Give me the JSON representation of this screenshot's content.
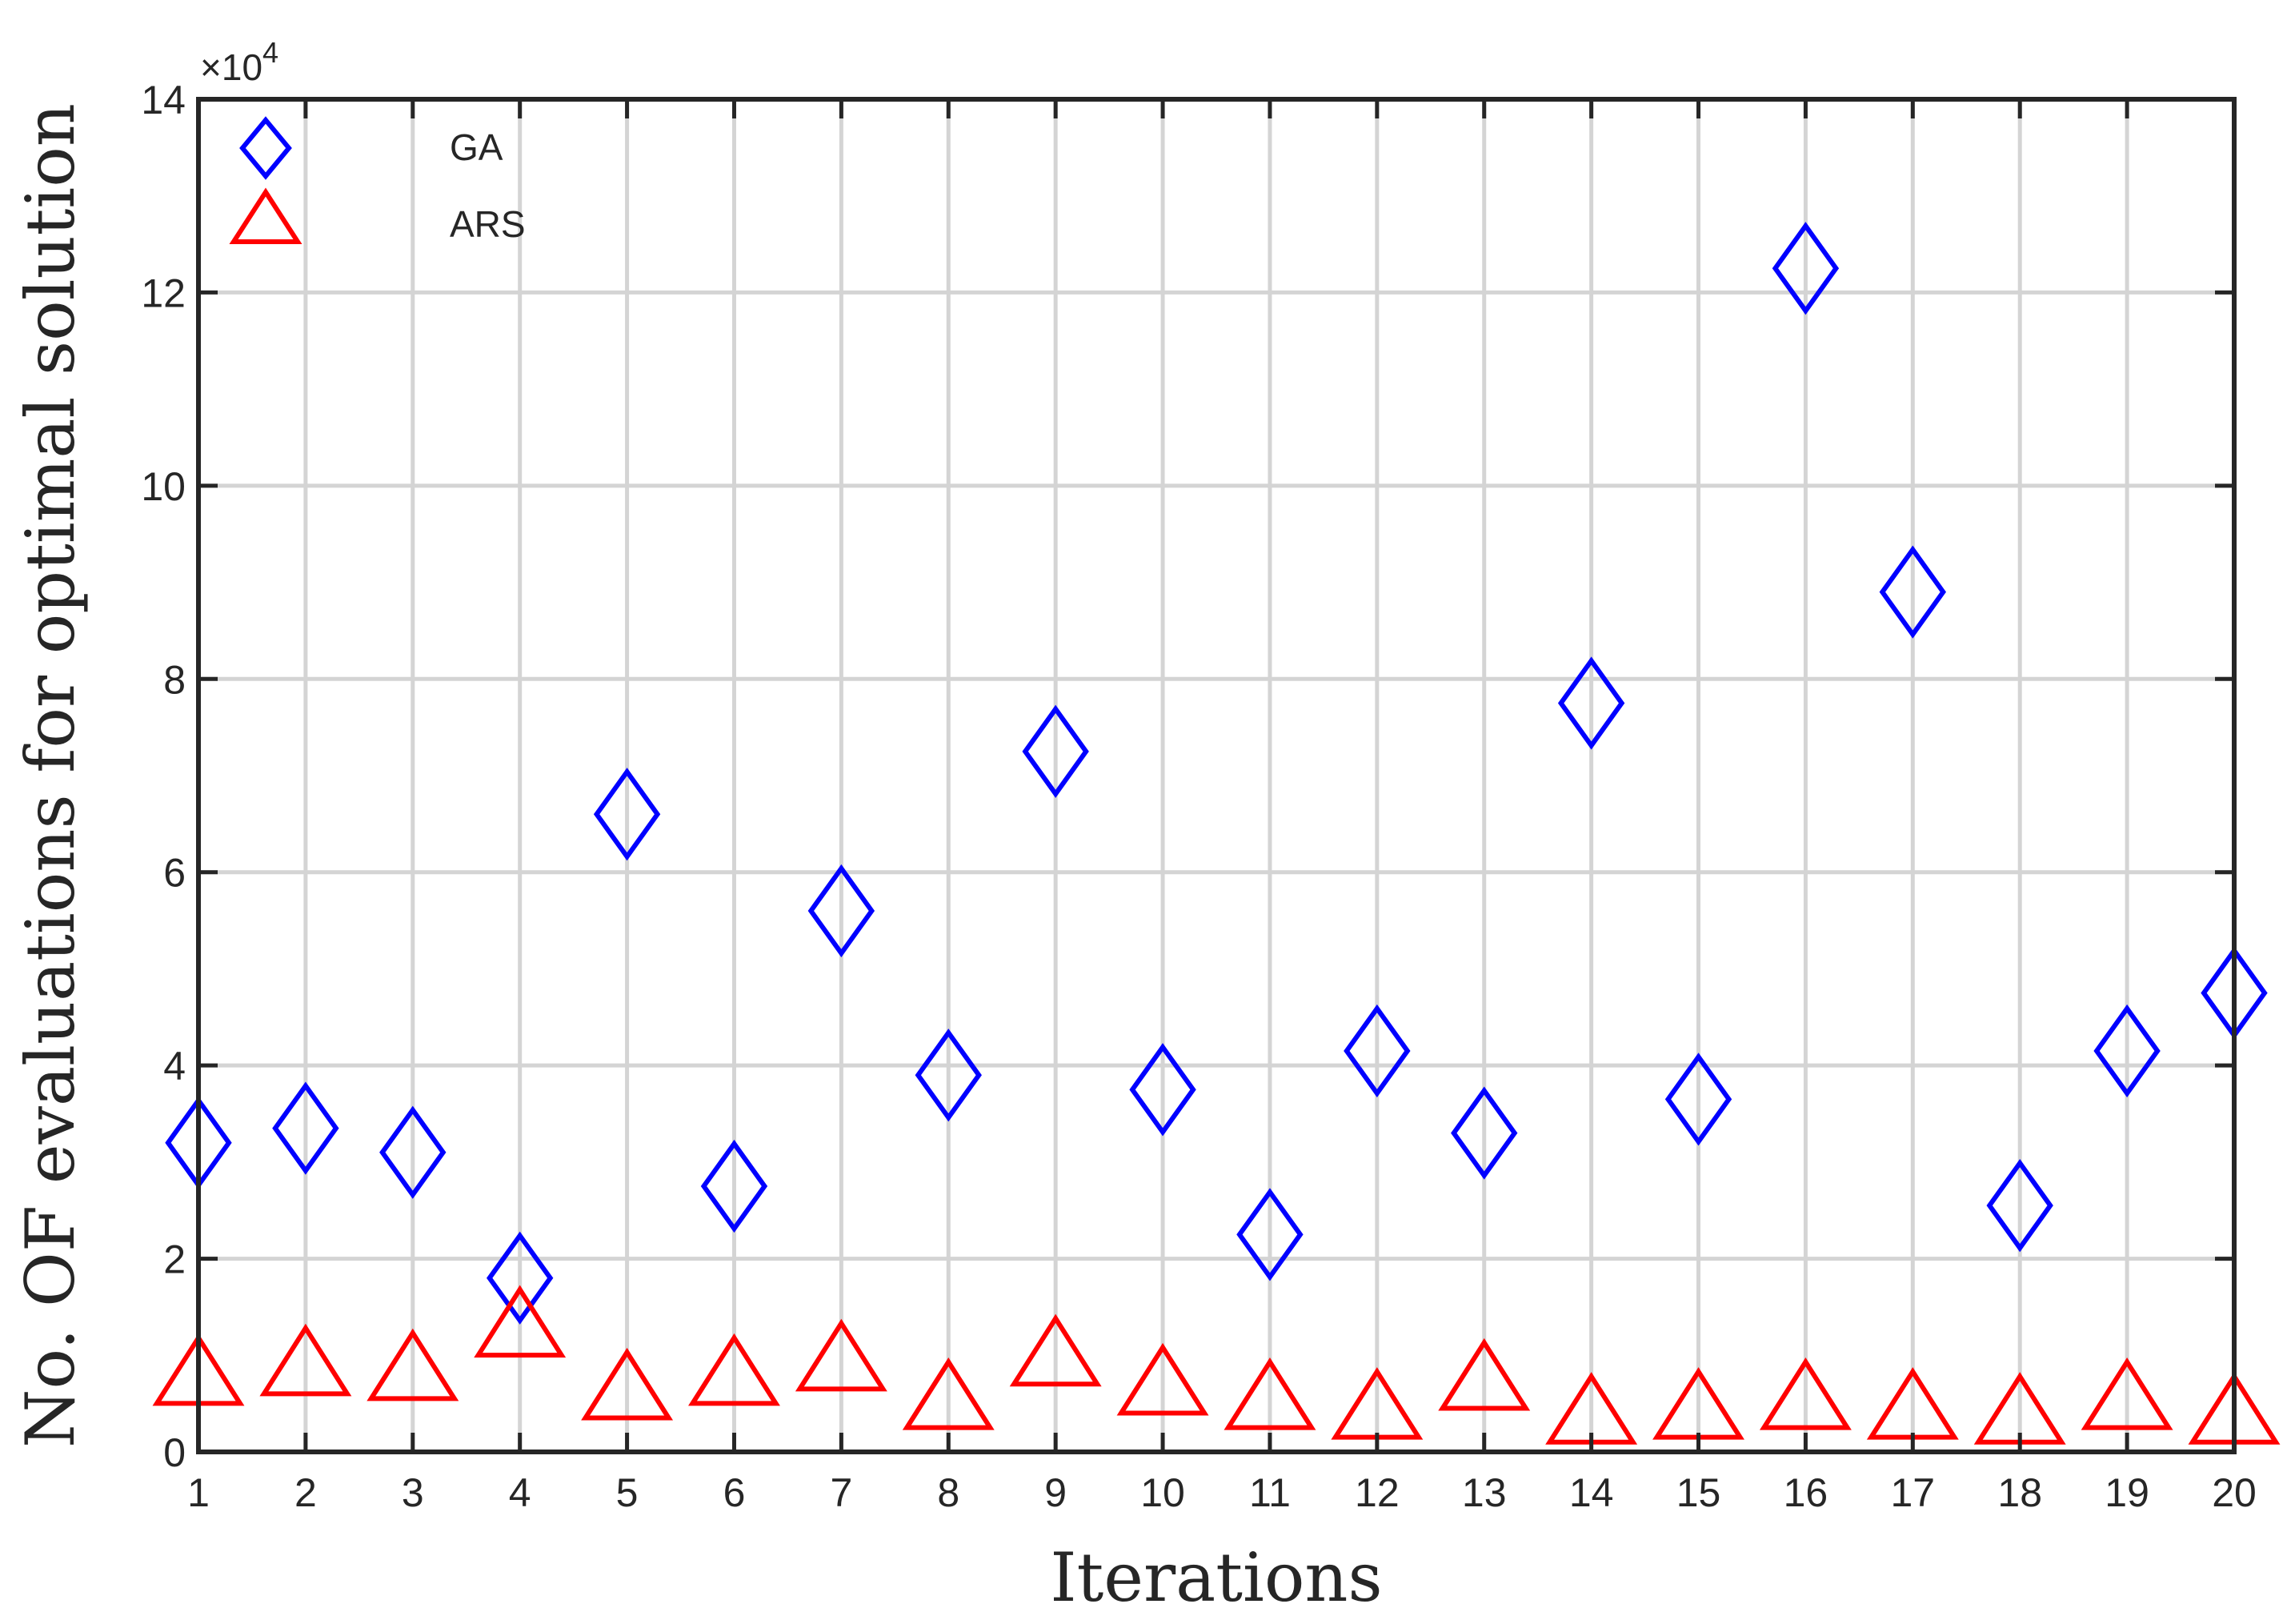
{
  "chart_data": {
    "type": "scatter",
    "xlabel": "Iterations",
    "ylabel": "No. OF evaluations for optimal solution",
    "y_exponent_base": "×10",
    "y_exponent_power": "4",
    "y_scale_factor": 10000,
    "xlim": [
      1,
      20
    ],
    "ylim": [
      0,
      14
    ],
    "x_ticks": [
      1,
      2,
      3,
      4,
      5,
      6,
      7,
      8,
      9,
      10,
      11,
      12,
      13,
      14,
      15,
      16,
      17,
      18,
      19,
      20
    ],
    "y_ticks": [
      0,
      2,
      4,
      6,
      8,
      10,
      12,
      14
    ],
    "grid": true,
    "legend_position": "top-left",
    "series": [
      {
        "name": "GA",
        "marker": "diamond",
        "color": "#0000ff",
        "x": [
          1,
          2,
          3,
          4,
          5,
          6,
          7,
          8,
          9,
          10,
          11,
          12,
          13,
          14,
          15,
          16,
          17,
          18,
          19,
          20
        ],
        "y": [
          3.2,
          3.35,
          3.1,
          1.8,
          6.6,
          2.75,
          5.6,
          3.9,
          7.25,
          3.75,
          2.25,
          4.15,
          3.3,
          7.75,
          3.65,
          12.25,
          8.9,
          2.55,
          4.15,
          4.75
        ]
      },
      {
        "name": "ARS",
        "marker": "triangle",
        "color": "#ff0000",
        "x": [
          1,
          2,
          3,
          4,
          5,
          6,
          7,
          8,
          9,
          10,
          11,
          12,
          13,
          14,
          15,
          16,
          17,
          18,
          19,
          20
        ],
        "y": [
          0.8,
          0.9,
          0.85,
          1.3,
          0.65,
          0.8,
          0.95,
          0.55,
          1.0,
          0.7,
          0.55,
          0.45,
          0.75,
          0.4,
          0.45,
          0.55,
          0.45,
          0.4,
          0.55,
          0.4
        ]
      }
    ]
  }
}
